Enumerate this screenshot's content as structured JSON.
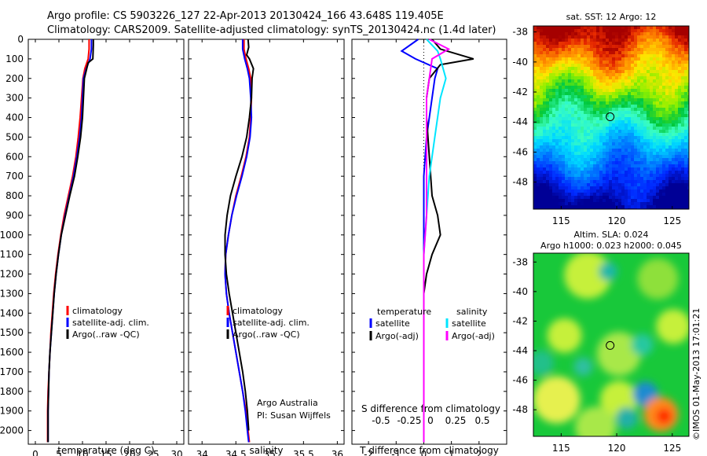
{
  "header": {
    "line1": "Argo profile: CS 5903226_127 22-Apr-2013 20130424_166 43.648S 119.405E",
    "line2": "Climatology: CARS2009. Satellite-adjusted climatology: synTS_20130424.nc (1.4d later)"
  },
  "credit": "©IMOS 01-May-2013 17:01:21",
  "attribution": {
    "line1": "Argo Australia",
    "line2": "PI: Susan Wijffels"
  },
  "colors": {
    "red": "#ff0000",
    "blue": "#0000ff",
    "black": "#000000",
    "cyan": "#00e5ff",
    "magenta": "#ff00ff"
  },
  "depth_ticks": [
    0,
    100,
    200,
    300,
    400,
    500,
    600,
    700,
    800,
    900,
    1000,
    1100,
    1200,
    1300,
    1400,
    1500,
    1600,
    1700,
    1800,
    1900,
    2000
  ],
  "chart_data": [
    {
      "type": "line",
      "id": "temperature",
      "xlabel": "temperature (deg C)",
      "xlim": [
        -1.5,
        31.5
      ],
      "xticks": [
        0,
        5,
        10,
        15,
        20,
        25,
        30
      ],
      "ylim": [
        0,
        2070
      ],
      "y_reversed": true,
      "legend": [
        "climatology",
        "satellite-adj. clim.",
        "Argo(..raw -QC)"
      ],
      "series": [
        {
          "name": "climatology",
          "color": "red",
          "x": [
            11.4,
            11.4,
            11.2,
            10.5,
            10.1,
            9.8,
            9.5,
            9.1,
            8.6,
            7.9,
            7.0,
            6.1,
            5.4,
            4.8,
            4.3,
            3.9,
            3.6,
            3.3,
            3.1,
            2.9,
            2.7,
            2.6,
            2.6
          ],
          "y": [
            0,
            50,
            100,
            150,
            200,
            300,
            400,
            500,
            600,
            700,
            800,
            900,
            1000,
            1100,
            1200,
            1300,
            1400,
            1500,
            1600,
            1700,
            1800,
            1900,
            2060
          ]
        },
        {
          "name": "satellite-adj. clim.",
          "color": "blue",
          "x": [
            11.9,
            11.9,
            11.6,
            10.8,
            10.2,
            10.0,
            9.8,
            9.4,
            8.8,
            8.1,
            7.2,
            6.3,
            5.5,
            4.9,
            4.4,
            4.0,
            3.7,
            3.4,
            3.1,
            2.9,
            2.8,
            2.7,
            2.7
          ],
          "y": [
            0,
            50,
            100,
            150,
            200,
            300,
            400,
            500,
            600,
            700,
            800,
            900,
            1000,
            1100,
            1200,
            1300,
            1400,
            1500,
            1600,
            1700,
            1800,
            1900,
            2060
          ]
        },
        {
          "name": "Argo(..raw -QC)",
          "color": "black",
          "x": [
            12.3,
            12.3,
            12.2,
            11.2,
            10.4,
            10.2,
            10.0,
            9.6,
            9.0,
            8.3,
            7.3,
            6.4,
            5.5,
            4.9,
            4.4,
            4.0,
            3.7,
            3.4,
            3.1,
            2.9,
            2.8,
            2.7,
            2.7
          ],
          "y": [
            0,
            30,
            100,
            120,
            200,
            300,
            400,
            500,
            600,
            700,
            800,
            900,
            1000,
            1100,
            1200,
            1300,
            1400,
            1500,
            1600,
            1700,
            1800,
            1900,
            2060
          ]
        }
      ]
    },
    {
      "type": "line",
      "id": "salinity",
      "xlabel": "salinity",
      "xlim": [
        33.8,
        36.1
      ],
      "xticks": [
        34,
        34.5,
        35,
        35.5,
        36
      ],
      "xtick_labels": [
        "34",
        "34.5",
        "35",
        "35.5",
        "36"
      ],
      "ylim": [
        0,
        2070
      ],
      "y_reversed": true,
      "legend": [
        "climatology",
        "satellite-adj. clim.",
        "Argo(..raw -QC)"
      ],
      "series": [
        {
          "name": "climatology",
          "color": "red",
          "x": [
            34.62,
            34.62,
            34.65,
            34.69,
            34.72,
            34.73,
            34.72,
            34.7,
            34.65,
            34.58,
            34.5,
            34.44,
            34.39,
            34.35,
            34.34,
            34.36,
            34.4,
            34.45,
            34.5,
            34.55,
            34.6,
            34.65,
            34.68,
            34.7
          ],
          "y": [
            0,
            50,
            100,
            150,
            200,
            300,
            400,
            500,
            600,
            700,
            800,
            900,
            1000,
            1100,
            1200,
            1300,
            1400,
            1500,
            1600,
            1700,
            1800,
            1900,
            2000,
            2060
          ]
        },
        {
          "name": "satellite-adj. clim.",
          "color": "blue",
          "x": [
            34.6,
            34.6,
            34.63,
            34.67,
            34.7,
            34.72,
            34.73,
            34.71,
            34.66,
            34.59,
            34.51,
            34.44,
            34.39,
            34.35,
            34.34,
            34.36,
            34.4,
            34.45,
            34.5,
            34.55,
            34.6,
            34.64,
            34.67,
            34.69
          ],
          "y": [
            0,
            50,
            100,
            150,
            200,
            300,
            400,
            500,
            600,
            700,
            800,
            900,
            1000,
            1100,
            1200,
            1300,
            1400,
            1500,
            1600,
            1700,
            1800,
            1900,
            2000,
            2060
          ]
        },
        {
          "name": "Argo(..raw -QC)",
          "color": "black",
          "x": [
            34.68,
            34.69,
            34.66,
            34.7,
            34.76,
            34.74,
            34.73,
            34.7,
            34.66,
            34.59,
            34.5,
            34.42,
            34.37,
            34.34,
            34.34,
            34.36,
            34.4,
            34.45,
            34.5,
            34.55,
            34.6,
            34.64,
            34.67,
            34.69
          ],
          "y": [
            0,
            40,
            80,
            100,
            150,
            200,
            300,
            400,
            500,
            600,
            700,
            800,
            900,
            1000,
            1100,
            1200,
            1300,
            1400,
            1500,
            1600,
            1700,
            1800,
            1900,
            2000
          ]
        }
      ]
    },
    {
      "type": "line",
      "id": "difference",
      "xlabel": "T difference from climatology",
      "xlabel_top": "S difference from climatology",
      "xlim": [
        -2.6,
        3.0
      ],
      "xticks": [
        -2,
        -1,
        0,
        1,
        2
      ],
      "xticks_top": [
        -0.5,
        -0.25,
        0,
        0.25,
        0.5
      ],
      "xtick_labels_top": [
        "-0.5",
        "-0.25",
        "0",
        "0.25",
        "0.5"
      ],
      "ylim": [
        0,
        2070
      ],
      "y_reversed": true,
      "legend_headings": [
        "temperature",
        "salinity"
      ],
      "legend": [
        "satellite",
        "Argo(-adj)",
        "satellite",
        "Argo(-adj)"
      ],
      "series": [
        {
          "name": "satellite",
          "group": "temperature",
          "color": "blue",
          "x": [
            -0.2,
            -0.8,
            -0.3,
            0.5,
            0.4,
            0.3,
            0.2,
            0.1,
            0.0,
            0.0,
            0.0,
            0.0,
            0.0,
            0.0,
            0.0,
            0.0,
            0.0,
            0.0,
            0.0
          ],
          "y": [
            0,
            60,
            100,
            150,
            200,
            300,
            400,
            500,
            700,
            900,
            1100,
            1300,
            1400,
            1500,
            1600,
            1700,
            1800,
            1900,
            2060
          ]
        },
        {
          "name": "Argo(-adj)",
          "group": "temperature",
          "color": "black",
          "x": [
            0.3,
            0.6,
            1.8,
            0.6,
            0.2,
            0.1,
            0.1,
            0.2,
            0.3,
            0.5,
            0.6,
            0.3,
            0.1,
            0.0,
            0.0,
            0.0,
            0.0,
            0.0,
            0.0
          ],
          "y": [
            0,
            50,
            100,
            130,
            200,
            300,
            400,
            600,
            800,
            900,
            1000,
            1100,
            1200,
            1300,
            1400,
            1500,
            1700,
            1900,
            2060
          ]
        },
        {
          "name": "satellite",
          "group": "salinity",
          "color": "cyan",
          "x": [
            0.1,
            0.5,
            0.6,
            0.8,
            0.6,
            0.4,
            0.2,
            0.1,
            0.0,
            0.0,
            0.0,
            0.0,
            0.0,
            0.0,
            0.0,
            0.0,
            0.0
          ],
          "y": [
            0,
            60,
            100,
            200,
            300,
            500,
            700,
            900,
            1100,
            1200,
            1300,
            1400,
            1500,
            1600,
            1700,
            1900,
            2060
          ]
        },
        {
          "name": "Argo(-adj)",
          "group": "salinity",
          "color": "magenta",
          "x": [
            0.2,
            0.9,
            0.3,
            0.2,
            0.1,
            0.1,
            0.1,
            0.1,
            0.0,
            0.0,
            0.0,
            0.0,
            0.0,
            0.0,
            0.0,
            0.0,
            0.0
          ],
          "y": [
            0,
            50,
            100,
            200,
            300,
            500,
            700,
            900,
            1100,
            1200,
            1300,
            1400,
            1500,
            1600,
            1700,
            1900,
            2060
          ]
        }
      ]
    },
    {
      "type": "heatmap",
      "id": "sst-map",
      "title": "sat. SST: 12 Argo: 12",
      "xlim": [
        112.5,
        126.5
      ],
      "xticks": [
        115,
        120,
        125
      ],
      "ylim": [
        -49.8,
        -37.6
      ],
      "yticks": [
        -38,
        -40,
        -42,
        -44,
        -46,
        -48
      ],
      "marker": {
        "lon": 119.405,
        "lat": -43.648
      }
    },
    {
      "type": "heatmap",
      "id": "sla-map",
      "title": "Altim. SLA: 0.024",
      "subtitle": "Argo h1000: 0.023 h2000: 0.045",
      "xlim": [
        112.5,
        126.5
      ],
      "xticks": [
        115,
        120,
        125
      ],
      "ylim": [
        -49.8,
        -37.4
      ],
      "yticks": [
        -38,
        -40,
        -42,
        -44,
        -46,
        -48
      ],
      "marker": {
        "lon": 119.405,
        "lat": -43.648
      }
    }
  ]
}
